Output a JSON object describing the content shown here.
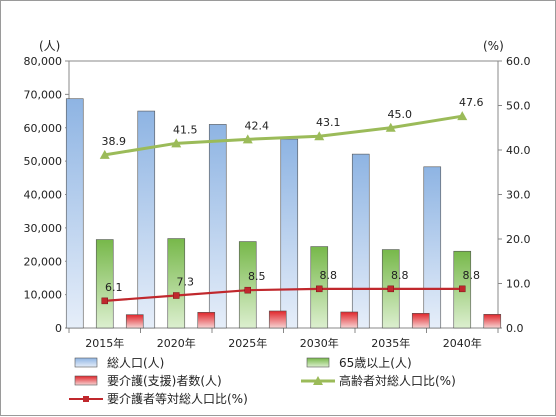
{
  "chart_data": {
    "type": "bar",
    "categories": [
      "2015年",
      "2020年",
      "2025年",
      "2030年",
      "2035年",
      "2040年"
    ],
    "y_left": {
      "unit": "(人)",
      "range": [
        0,
        80000
      ],
      "ticks": [
        "0",
        "10,000",
        "20,000",
        "30,000",
        "40,000",
        "50,000",
        "60,000",
        "70,000",
        "80,000"
      ]
    },
    "y_right": {
      "unit": "(%)",
      "range": [
        0,
        60
      ],
      "ticks": [
        "0.0",
        "10.0",
        "20.0",
        "30.0",
        "40.0",
        "50.0",
        "60.0"
      ]
    },
    "series": [
      {
        "name": "総人口(人)",
        "kind": "bar",
        "axis": "left",
        "color": "#8EB4E3",
        "values": [
          68700,
          65000,
          61000,
          56600,
          52100,
          48300
        ]
      },
      {
        "name": "65歳以上(人)",
        "kind": "bar",
        "axis": "left",
        "color": "#77B84A",
        "values": [
          26500,
          26800,
          25900,
          24400,
          23500,
          23000
        ]
      },
      {
        "name": "要介護(支援)者数(人)",
        "kind": "bar",
        "axis": "left",
        "color": "#E0262B",
        "values": [
          4000,
          4700,
          5100,
          4800,
          4400,
          4100
        ]
      },
      {
        "name": "高齢者対総人口比(%)",
        "kind": "line",
        "axis": "right",
        "color": "#9BBB59",
        "values": [
          38.9,
          41.5,
          42.4,
          43.1,
          45.0,
          47.6
        ],
        "labels": [
          "38.9",
          "41.5",
          "42.4",
          "43.1",
          "45.0",
          "47.6"
        ]
      },
      {
        "name": "要介護者等対総人口比(%)",
        "kind": "line",
        "axis": "right",
        "color": "#C0282D",
        "values": [
          6.1,
          7.3,
          8.5,
          8.8,
          8.8,
          8.8
        ],
        "labels": [
          "6.1",
          "7.3",
          "8.5",
          "8.8",
          "8.8",
          "8.8"
        ]
      }
    ],
    "grid": false,
    "legend_position": "bottom"
  }
}
